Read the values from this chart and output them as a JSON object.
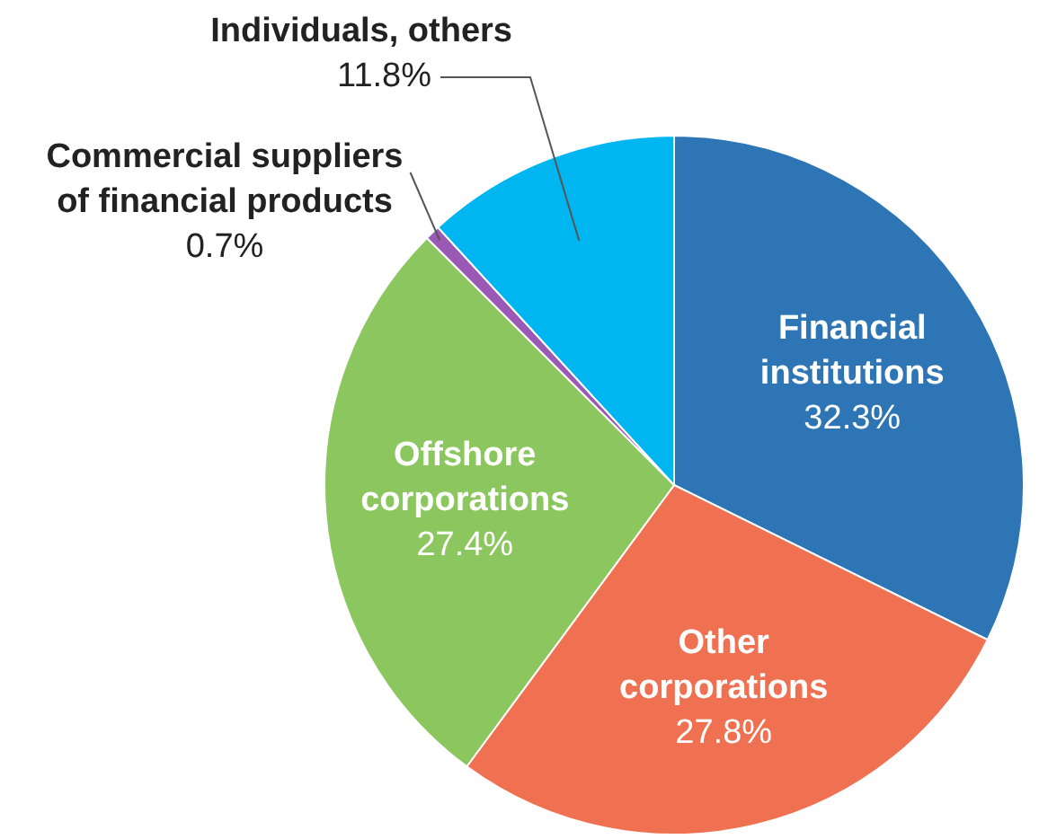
{
  "chart_data": {
    "type": "pie",
    "categories": [
      "Financial institutions",
      "Other corporations",
      "Offshore corporations",
      "Commercial suppliers of financial products",
      "Individuals, others"
    ],
    "values": [
      32.3,
      27.8,
      27.4,
      0.7,
      11.8
    ],
    "value_labels": [
      "32.3%",
      "27.8%",
      "27.4%",
      "0.7%",
      "11.8%"
    ],
    "colors": [
      "#2e75b6",
      "#f07052",
      "#8cc65f",
      "#9b59b6",
      "#00b6f0"
    ],
    "legend": false
  }
}
